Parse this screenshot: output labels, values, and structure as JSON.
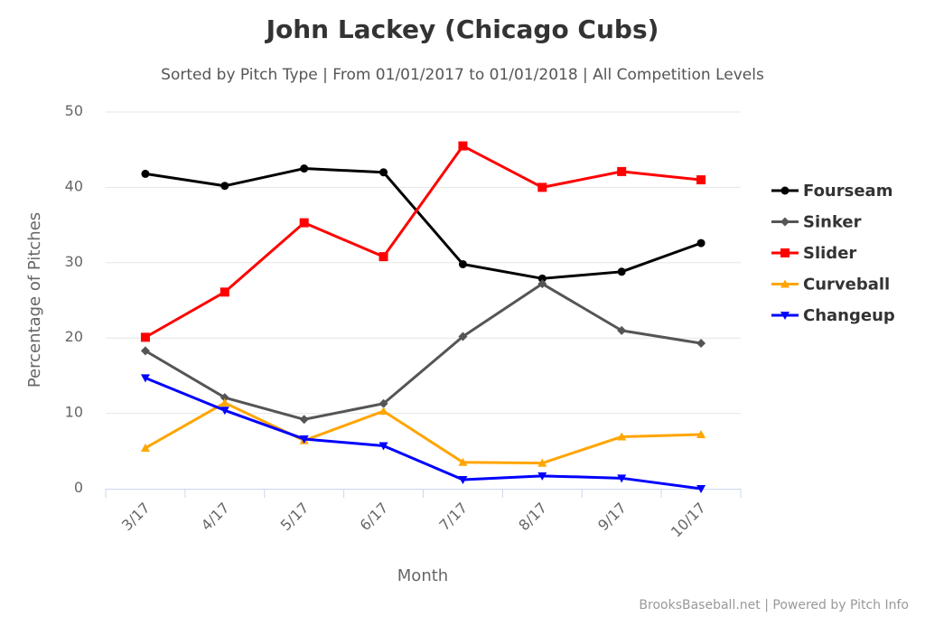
{
  "chart_data": {
    "type": "line",
    "title": "John Lackey (Chicago Cubs)",
    "subtitle": "Sorted by Pitch Type | From 01/01/2017 to 01/01/2018 | All Competition Levels",
    "xlabel": "Month",
    "ylabel": "Percentage of Pitches",
    "categories": [
      "3/17",
      "4/17",
      "5/17",
      "6/17",
      "7/17",
      "8/17",
      "9/17",
      "10/17"
    ],
    "ylim": [
      0,
      50
    ],
    "yticks": [
      "0",
      "10",
      "20",
      "30",
      "40",
      "50"
    ],
    "grid": true,
    "legend_position": "right",
    "series": [
      {
        "name": "Fourseam",
        "color": "#000000",
        "marker": "circle",
        "values": [
          41.8,
          40.2,
          42.5,
          42.0,
          29.8,
          27.9,
          28.8,
          32.6
        ]
      },
      {
        "name": "Sinker",
        "color": "#555555",
        "marker": "diamond",
        "values": [
          18.3,
          12.1,
          9.2,
          11.3,
          20.2,
          27.2,
          21.0,
          19.3
        ]
      },
      {
        "name": "Slider",
        "color": "#ff0000",
        "marker": "square",
        "values": [
          20.1,
          26.1,
          35.3,
          30.8,
          45.5,
          40.0,
          42.1,
          41.0
        ]
      },
      {
        "name": "Curveball",
        "color": "#ffa500",
        "marker": "triangle",
        "values": [
          5.4,
          11.4,
          6.4,
          10.3,
          3.5,
          3.4,
          6.9,
          7.2
        ]
      },
      {
        "name": "Changeup",
        "color": "#0000ff",
        "marker": "triangle-down",
        "values": [
          14.7,
          10.4,
          6.6,
          5.7,
          1.2,
          1.7,
          1.4,
          0.0
        ]
      }
    ]
  },
  "credits": "BrooksBaseball.net | Powered by Pitch Info"
}
